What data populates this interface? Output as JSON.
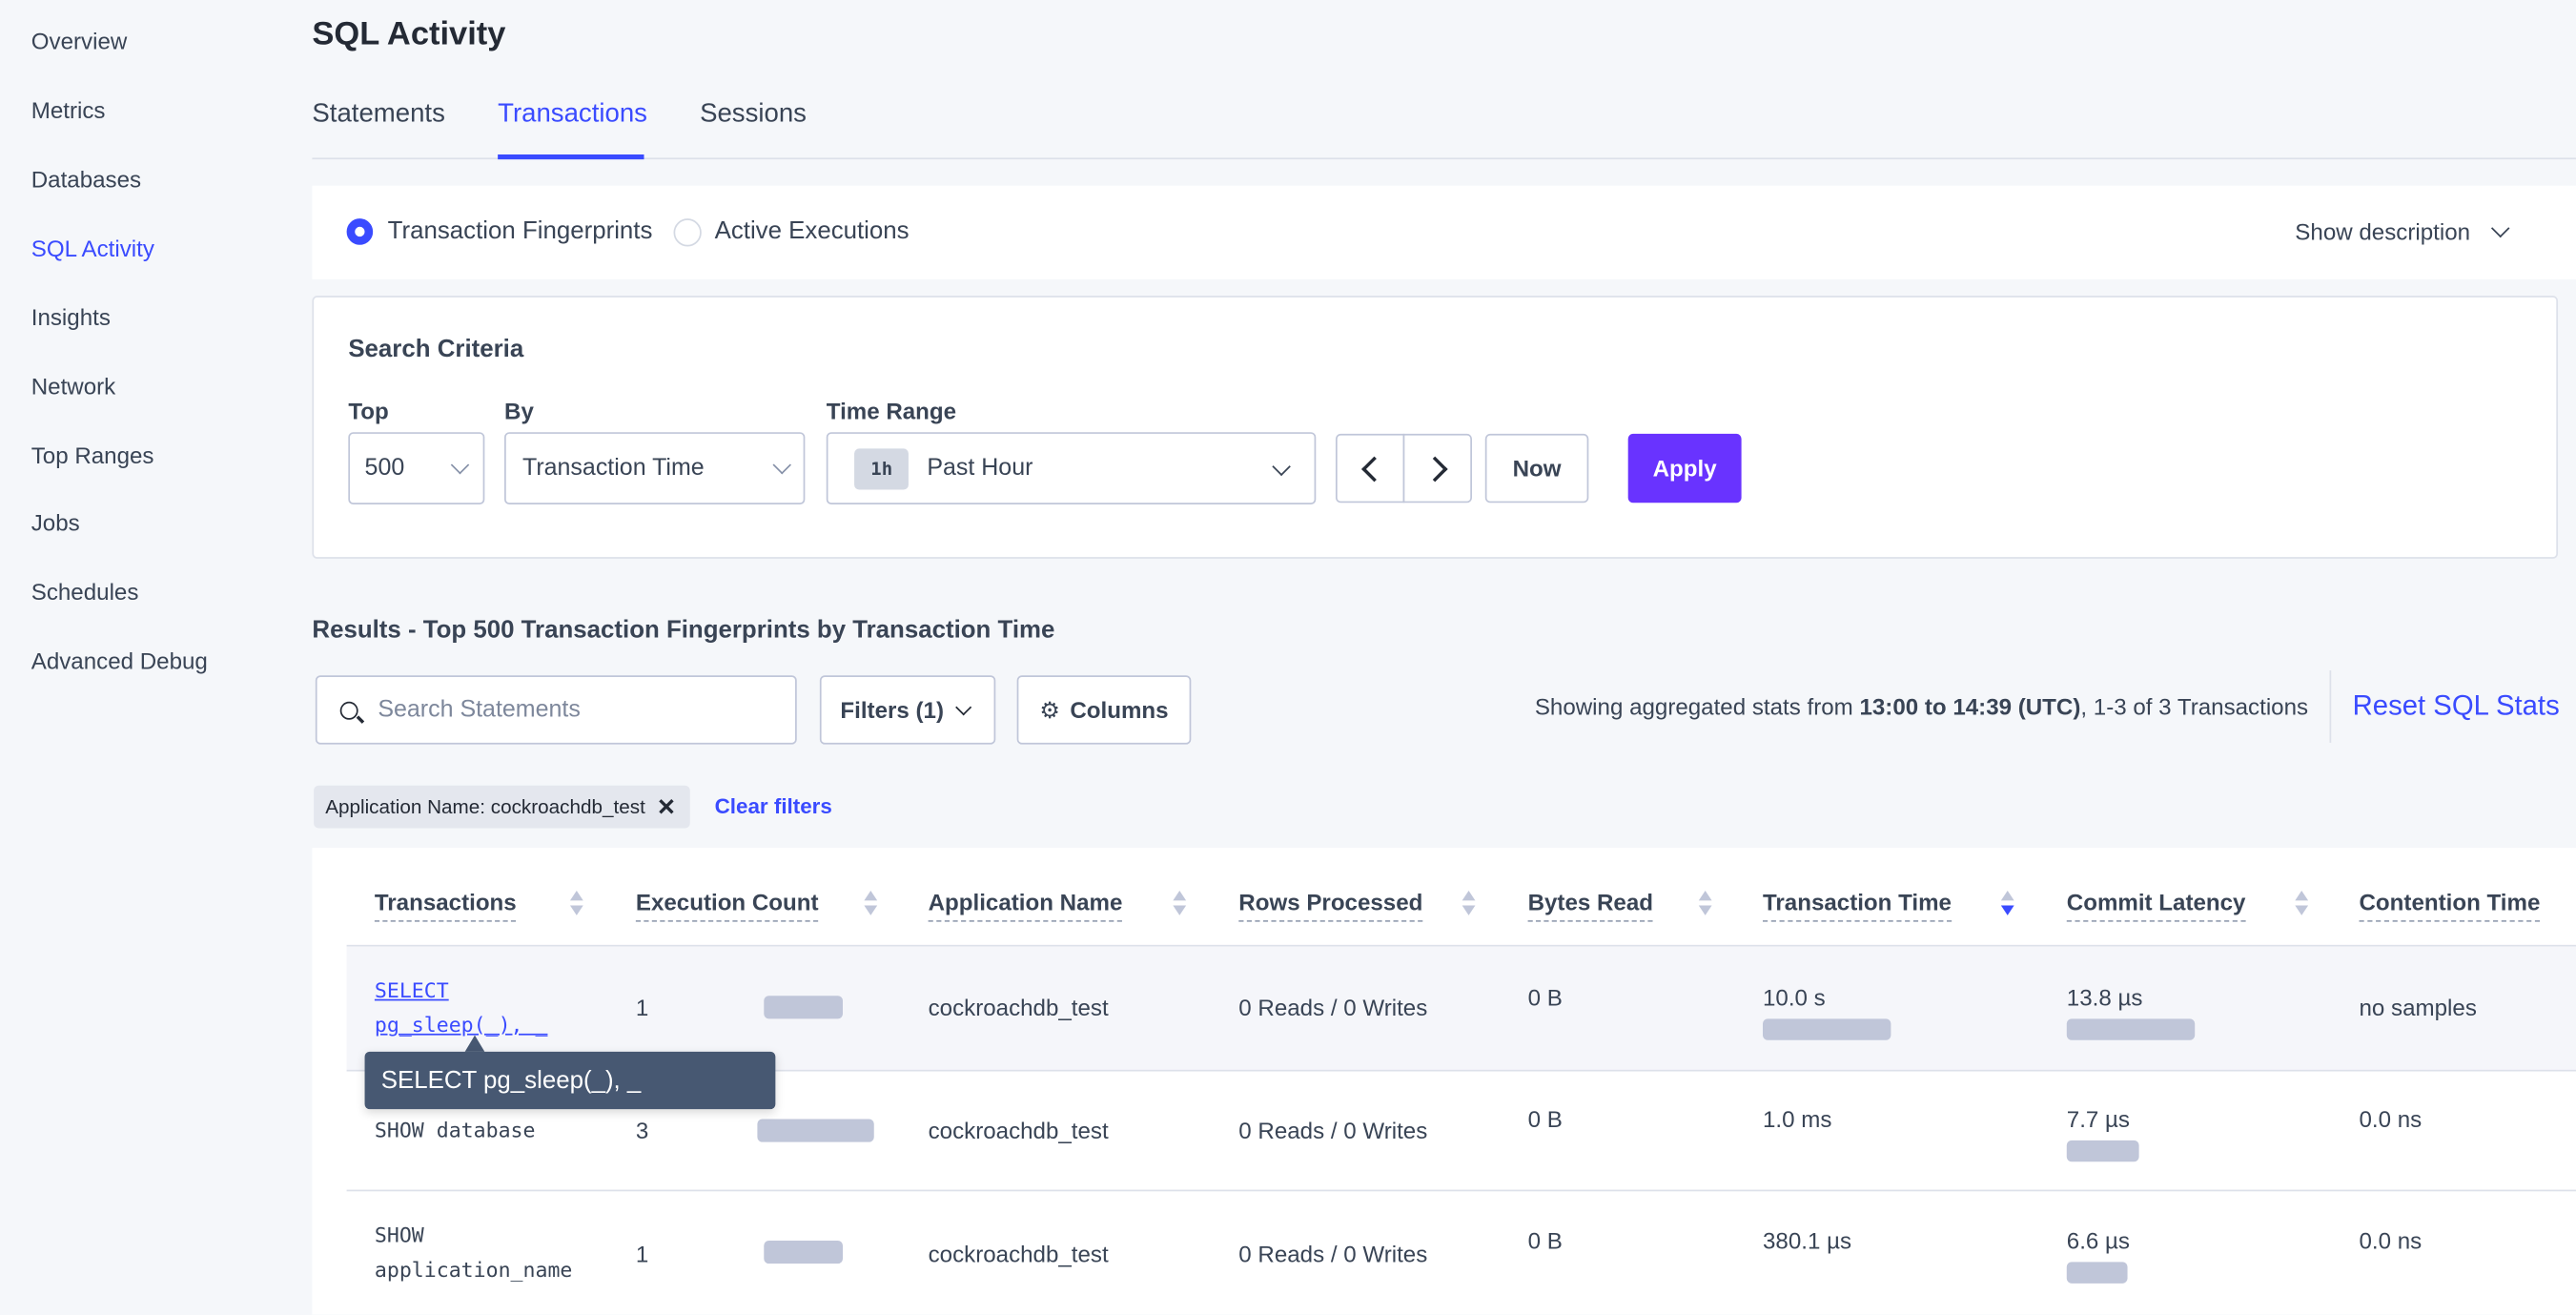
{
  "sidebar": {
    "items": [
      {
        "label": "Overview"
      },
      {
        "label": "Metrics"
      },
      {
        "label": "Databases"
      },
      {
        "label": "SQL Activity",
        "active": true
      },
      {
        "label": "Insights"
      },
      {
        "label": "Network"
      },
      {
        "label": "Top Ranges"
      },
      {
        "label": "Jobs"
      },
      {
        "label": "Schedules"
      },
      {
        "label": "Advanced Debug"
      }
    ]
  },
  "header": {
    "title": "SQL Activity",
    "tabs": [
      {
        "label": "Statements"
      },
      {
        "label": "Transactions",
        "active": true
      },
      {
        "label": "Sessions"
      }
    ]
  },
  "view": {
    "options": [
      {
        "label": "Transaction Fingerprints",
        "selected": true
      },
      {
        "label": "Active Executions",
        "selected": false
      }
    ],
    "show_description": "Show description"
  },
  "search_criteria": {
    "title": "Search Criteria",
    "top_label": "Top",
    "top_value": "500",
    "by_label": "By",
    "by_value": "Transaction Time",
    "time_range_label": "Time Range",
    "time_badge": "1h",
    "time_value": "Past Hour",
    "now": "Now",
    "apply": "Apply"
  },
  "results": {
    "heading": "Results - Top 500 Transaction Fingerprints by Transaction Time",
    "search_placeholder": "Search Statements",
    "filters": "Filters (1)",
    "columns": "Columns",
    "stats_prefix": "Showing aggregated stats from ",
    "stats_range": "13:00 to 14:39 (UTC)",
    "stats_suffix": ", 1-3 of 3 Transactions",
    "reset": "Reset SQL Stats",
    "chip": "Application Name: cockroachdb_test",
    "clear_filters": "Clear filters"
  },
  "colors": {
    "accent": "#3a4bff",
    "apply": "#6933ff",
    "tooltip": "#475872"
  },
  "table": {
    "headers": [
      "Transactions",
      "Execution Count",
      "Application Name",
      "Rows Processed",
      "Bytes Read",
      "Transaction Time",
      "Commit Latency",
      "Contention Time"
    ],
    "sorted_column": "Transaction Time",
    "sort_direction": "descending",
    "rows": [
      {
        "tx_line1": "SELECT",
        "tx_line2": "pg_sleep(_), _",
        "count": "1",
        "app": "cockroachdb_test",
        "rows": "0 Reads / 0 Writes",
        "bytes": "0 B",
        "time": "10.0 s",
        "commit": "13.8 µs",
        "contention": "no samples"
      },
      {
        "tx_line1": "SHOW database",
        "tx_line2": "",
        "count": "3",
        "app": "cockroachdb_test",
        "rows": "0 Reads / 0 Writes",
        "bytes": "0 B",
        "time": "1.0 ms",
        "commit": "7.7 µs",
        "contention": "0.0 ns"
      },
      {
        "tx_line1": "SHOW",
        "tx_line2": "application_name",
        "count": "1",
        "app": "cockroachdb_test",
        "rows": "0 Reads / 0 Writes",
        "bytes": "0 B",
        "time": "380.1 µs",
        "commit": "6.6 µs",
        "contention": "0.0 ns"
      }
    ]
  },
  "tooltip": {
    "text": "SELECT pg_sleep(_), _"
  }
}
